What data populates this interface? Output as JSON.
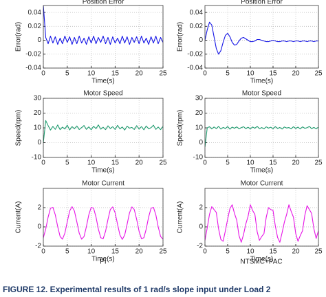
{
  "chart_data": [
    {
      "type": "line",
      "title": "Position Error",
      "xlabel": "Time(s)",
      "ylabel": "Error(rad)",
      "xlim": [
        0,
        25
      ],
      "ylim": [
        -0.04,
        0.05
      ],
      "xticks": [
        0,
        5,
        10,
        15,
        20,
        25
      ],
      "yticks": [
        -0.04,
        -0.02,
        0,
        0.02,
        0.04
      ],
      "grid": true,
      "x": [
        0,
        0.5,
        1,
        1.5,
        2,
        2.5,
        3,
        3.5,
        4,
        4.5,
        5,
        5.5,
        6,
        6.5,
        7,
        7.5,
        8,
        8.5,
        9,
        9.5,
        10,
        10.5,
        11,
        11.5,
        12,
        12.5,
        13,
        13.5,
        14,
        14.5,
        15,
        15.5,
        16,
        16.5,
        17,
        17.5,
        18,
        18.5,
        19,
        19.5,
        20,
        20.5,
        21,
        21.5,
        22,
        22.5,
        23,
        23.5,
        24,
        24.5,
        25
      ],
      "series": [
        {
          "color": "#1414e6",
          "values": [
            0.05,
            0.004,
            -0.005,
            0.006,
            -0.004,
            0.005,
            -0.006,
            0.003,
            -0.005,
            0.006,
            -0.003,
            0.005,
            -0.006,
            0.004,
            -0.005,
            0.006,
            -0.004,
            0.003,
            -0.006,
            0.005,
            -0.004,
            0.006,
            -0.005,
            0.004,
            -0.003,
            0.006,
            -0.005,
            0.004,
            -0.006,
            0.005,
            -0.004,
            0.003,
            -0.005,
            0.006,
            -0.004,
            0.005,
            -0.006,
            0.004,
            -0.003,
            0.005,
            -0.005,
            0.006,
            -0.004,
            0.003,
            -0.006,
            0.005,
            -0.004,
            0.006,
            -0.005,
            0.004,
            -0.003
          ]
        }
      ]
    },
    {
      "type": "line",
      "title": "Position Error",
      "xlabel": "Time(s)",
      "ylabel": "Error(rad)",
      "xlim": [
        0,
        25
      ],
      "ylim": [
        -0.04,
        0.05
      ],
      "xticks": [
        0,
        5,
        10,
        15,
        20,
        25
      ],
      "yticks": [
        -0.04,
        -0.02,
        0,
        0.02,
        0.04
      ],
      "grid": true,
      "x": [
        0,
        0.5,
        1,
        1.5,
        2,
        2.5,
        3,
        3.5,
        4,
        4.5,
        5,
        5.5,
        6,
        6.5,
        7,
        7.5,
        8,
        8.5,
        9,
        9.5,
        10,
        10.5,
        11,
        11.5,
        12,
        12.5,
        13,
        13.5,
        14,
        14.5,
        15,
        15.5,
        16,
        16.5,
        17,
        17.5,
        18,
        18.5,
        19,
        19.5,
        20,
        20.5,
        21,
        21.5,
        22,
        22.5,
        23,
        23.5,
        24,
        24.5,
        25
      ],
      "series": [
        {
          "color": "#1414e6",
          "values": [
            0,
            0.015,
            0.026,
            0.022,
            0.005,
            -0.012,
            -0.02,
            -0.015,
            -0.003,
            0.007,
            0.01,
            0.005,
            -0.003,
            -0.007,
            -0.006,
            -0.001,
            0.003,
            0.004,
            0.002,
            0,
            -0.002,
            -0.002,
            -0.001,
            0.001,
            0.001,
            0,
            -0.001,
            -0.002,
            -0.002,
            -0.001,
            0,
            -0.001,
            -0.002,
            -0.002,
            -0.001,
            -0.001,
            -0.002,
            -0.001,
            -0.001,
            -0.002,
            -0.001,
            -0.001,
            -0.002,
            -0.001,
            -0.001,
            -0.002,
            -0.001,
            -0.001,
            -0.002,
            -0.001,
            -0.001
          ]
        }
      ]
    },
    {
      "type": "line",
      "title": "Motor Speed",
      "xlabel": "Time(s)",
      "ylabel": "Speed(rpm)",
      "xlim": [
        0,
        25
      ],
      "ylim": [
        -10,
        30
      ],
      "xticks": [
        0,
        5,
        10,
        15,
        20,
        25
      ],
      "yticks": [
        -10,
        0,
        10,
        20,
        30
      ],
      "grid": true,
      "x": [
        0,
        0.5,
        1,
        1.5,
        2,
        2.5,
        3,
        3.5,
        4,
        4.5,
        5,
        5.5,
        6,
        6.5,
        7,
        7.5,
        8,
        8.5,
        9,
        9.5,
        10,
        10.5,
        11,
        11.5,
        12,
        12.5,
        13,
        13.5,
        14,
        14.5,
        15,
        15.5,
        16,
        16.5,
        17,
        17.5,
        18,
        18.5,
        19,
        19.5,
        20,
        20.5,
        21,
        21.5,
        22,
        22.5,
        23,
        23.5,
        24,
        24.5,
        25
      ],
      "series": [
        {
          "color": "#1e9b6e",
          "values": [
            0,
            15,
            11.5,
            8.5,
            11,
            9,
            12,
            8.8,
            10.5,
            9.2,
            11.8,
            8.6,
            10.9,
            9.4,
            11.3,
            8.9,
            10.2,
            11.6,
            9,
            10.7,
            8.7,
            11.1,
            9.5,
            12,
            9.1,
            10.4,
            8.8,
            11.4,
            9.6,
            10.8,
            8.9,
            11.7,
            9.3,
            10.6,
            8.5,
            11.2,
            9.8,
            10.3,
            8.9,
            11.5,
            9.2,
            10.9,
            8.7,
            11.3,
            9.4,
            10.1,
            11.8,
            9,
            10.6,
            8.8,
            11
          ]
        }
      ]
    },
    {
      "type": "line",
      "title": "Motor Speed",
      "xlabel": "Time(s)",
      "ylabel": "Speed(rpm)",
      "xlim": [
        0,
        25
      ],
      "ylim": [
        -10,
        30
      ],
      "xticks": [
        0,
        5,
        10,
        15,
        20,
        25
      ],
      "yticks": [
        -10,
        0,
        10,
        20,
        30
      ],
      "grid": true,
      "x": [
        0,
        0.5,
        1,
        1.5,
        2,
        2.5,
        3,
        3.5,
        4,
        4.5,
        5,
        5.5,
        6,
        6.5,
        7,
        7.5,
        8,
        8.5,
        9,
        9.5,
        10,
        10.5,
        11,
        11.5,
        12,
        12.5,
        13,
        13.5,
        14,
        14.5,
        15,
        15.5,
        16,
        16.5,
        17,
        17.5,
        18,
        18.5,
        19,
        19.5,
        20,
        20.5,
        21,
        21.5,
        22,
        22.5,
        23,
        23.5,
        24,
        24.5,
        25
      ],
      "series": [
        {
          "color": "#1e9b6e",
          "values": [
            -3,
            10,
            10.8,
            9.3,
            10.6,
            9.5,
            11,
            9.2,
            10.3,
            9.6,
            10.9,
            9.1,
            10.5,
            9.7,
            10.7,
            9.4,
            10.1,
            10.8,
            9.5,
            10.4,
            9.3,
            10.6,
            9.7,
            11,
            9.5,
            10.2,
            9.4,
            10.7,
            9.8,
            10.4,
            9.4,
            10.9,
            9.6,
            10.3,
            9.2,
            10.6,
            9.9,
            10.2,
            9.4,
            10.8,
            9.6,
            10.5,
            9.3,
            10.7,
            9.7,
            10.1,
            11,
            9.5,
            10.3,
            9.4,
            10.5
          ]
        }
      ]
    },
    {
      "type": "line",
      "title": "Motor Current",
      "xlabel": "Time(s)",
      "ylabel": "Current(A)",
      "xlim": [
        0,
        25
      ],
      "ylim": [
        -2,
        4
      ],
      "xticks": [
        0,
        5,
        10,
        15,
        20,
        25
      ],
      "yticks": [
        -2,
        0,
        2
      ],
      "grid": true,
      "x": [
        0,
        0.5,
        1,
        1.5,
        2,
        2.5,
        3,
        3.5,
        4,
        4.5,
        5,
        5.5,
        6,
        6.5,
        7,
        7.5,
        8,
        8.5,
        9,
        9.5,
        10,
        10.5,
        11,
        11.5,
        12,
        12.5,
        13,
        13.5,
        14,
        14.5,
        15,
        15.5,
        16,
        16.5,
        17,
        17.5,
        18,
        18.5,
        19,
        19.5,
        20,
        20.5,
        21,
        21.5,
        22,
        22.5,
        23,
        23.5,
        24,
        24.5,
        25
      ],
      "series": [
        {
          "color": "#e614e6",
          "values": [
            -1.13,
            -0.22,
            1.02,
            1.93,
            2.03,
            1.25,
            0.02,
            -1.0,
            -1.28,
            -0.66,
            0.53,
            1.65,
            2.1,
            1.65,
            0.53,
            -0.66,
            -1.28,
            -1.0,
            0.02,
            1.25,
            2.03,
            1.93,
            1.02,
            -0.22,
            -1.13,
            -1.23,
            -0.45,
            0.78,
            1.8,
            2.08,
            1.46,
            0.27,
            -0.85,
            -1.3,
            -0.85,
            0.27,
            1.46,
            2.08,
            1.8,
            0.78,
            -0.45,
            -1.23,
            -1.13,
            -0.22,
            1.02,
            1.93,
            2.03,
            1.25,
            0.02,
            -1.0,
            -1.28
          ]
        }
      ]
    },
    {
      "type": "line",
      "title": "Motor Current",
      "xlabel": "Time(s)",
      "ylabel": "Current(A)",
      "xlim": [
        0,
        25
      ],
      "ylim": [
        -2,
        4
      ],
      "xticks": [
        0,
        5,
        10,
        15,
        20,
        25
      ],
      "yticks": [
        -2,
        0,
        2
      ],
      "grid": true,
      "x": [
        0,
        0.5,
        1,
        1.5,
        2,
        2.5,
        3,
        3.5,
        4,
        4.5,
        5,
        5.5,
        6,
        6.5,
        7,
        7.5,
        8,
        8.5,
        9,
        9.5,
        10,
        10.5,
        11,
        11.5,
        12,
        12.5,
        13,
        13.5,
        14,
        14.5,
        15,
        15.5,
        16,
        16.5,
        17,
        17.5,
        18,
        18.5,
        19,
        19.5,
        20,
        20.5,
        21,
        21.5,
        22,
        22.5,
        23,
        23.5,
        24,
        24.5,
        25
      ],
      "series": [
        {
          "color": "#e614e6",
          "values": [
            -1.4,
            -0.1,
            1.3,
            2.1,
            1.8,
            1.5,
            -0.2,
            -1.3,
            -1.5,
            -0.4,
            0.8,
            1.9,
            2.3,
            1.4,
            0.7,
            -0.9,
            -1.6,
            -0.8,
            0.3,
            1.1,
            2.3,
            1.7,
            1.3,
            -0.5,
            -1.4,
            -1.0,
            -0.7,
            1.0,
            2.0,
            1.8,
            1.7,
            0.1,
            -1.1,
            -1.6,
            -0.6,
            0.5,
            1.3,
            2.3,
            1.6,
            1.0,
            -0.7,
            -1.5,
            -0.9,
            -0.4,
            1.2,
            2.2,
            1.8,
            1.4,
            -0.2,
            -1.2,
            -0.4
          ]
        }
      ]
    }
  ],
  "column_labels": [
    "PI",
    "NTSMC+PAC"
  ],
  "caption": "FIGURE 12. Experimental results of 1 rad/s slope input under Load 2"
}
